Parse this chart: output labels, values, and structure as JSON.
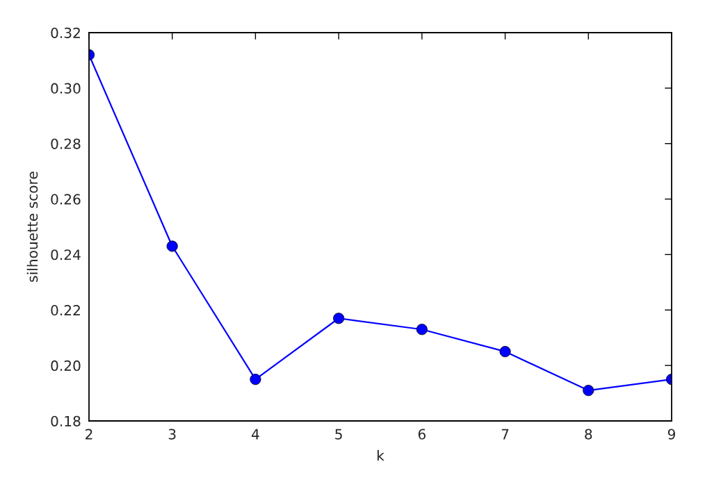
{
  "chart_data": {
    "type": "line",
    "xlabel": "k",
    "ylabel": "silhouette score",
    "x": [
      2,
      3,
      4,
      5,
      6,
      7,
      8,
      9
    ],
    "series": [
      {
        "color": "#0000ff",
        "values": [
          0.312,
          0.243,
          0.195,
          0.217,
          0.213,
          0.205,
          0.191,
          0.195
        ]
      }
    ],
    "xlim": [
      2,
      9
    ],
    "xticks": [
      2,
      3,
      4,
      5,
      6,
      7,
      8,
      9
    ],
    "ylim": [
      0.18,
      0.32
    ],
    "yticks": [
      0.18,
      {
        "value": 0.2,
        "label": "0.20"
      },
      0.22,
      0.24,
      0.26,
      0.28,
      {
        "value": 0.3,
        "label": "0.30"
      },
      0.32
    ],
    "marker": "circle",
    "line_style": "solid",
    "grid": false,
    "legend": false
  }
}
